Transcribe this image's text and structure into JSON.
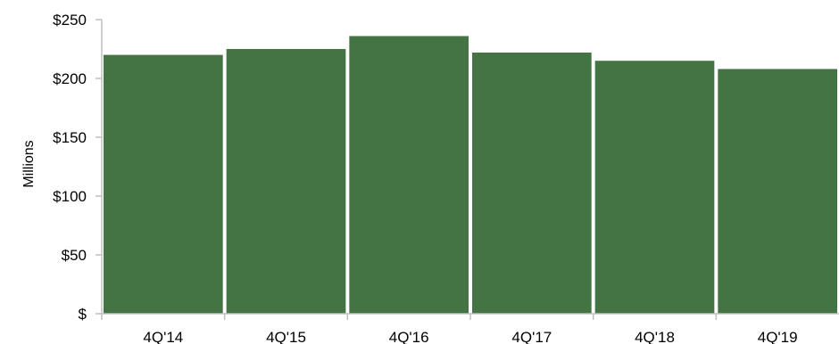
{
  "chart_data": {
    "type": "bar",
    "categories": [
      "4Q'14",
      "4Q'15",
      "4Q'16",
      "4Q'17",
      "4Q'18",
      "4Q'19"
    ],
    "values": [
      220,
      225,
      236,
      222,
      215,
      208
    ],
    "ylabel": "Millions",
    "xlabel": "",
    "ylim": [
      0,
      250
    ],
    "yticks": [
      0,
      50,
      100,
      150,
      200,
      250
    ],
    "ytick_labels": [
      "$",
      "$50",
      "$100",
      "$150",
      "$200",
      "$250"
    ],
    "grid": false,
    "legend": "none",
    "colors": {
      "bar": "#447444",
      "axis": "#bfbfbf"
    }
  }
}
